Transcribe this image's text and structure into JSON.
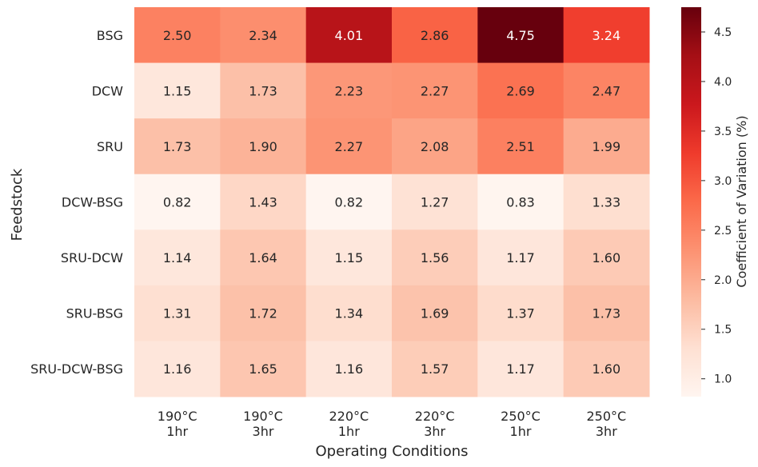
{
  "chart_data": {
    "type": "heatmap",
    "title": "",
    "xlabel": "Operating Conditions",
    "ylabel": "Feedstock",
    "colorbar_label": "Coefficient of Variation (%)",
    "colormap": "Reds",
    "value_range": [
      0.82,
      4.75
    ],
    "colorbar_ticks": [
      "1.0",
      "1.5",
      "2.0",
      "2.5",
      "3.0",
      "3.5",
      "4.0",
      "4.5"
    ],
    "x_categories": [
      [
        "190°C",
        "1hr"
      ],
      [
        "190°C",
        "3hr"
      ],
      [
        "220°C",
        "1hr"
      ],
      [
        "220°C",
        "3hr"
      ],
      [
        "250°C",
        "1hr"
      ],
      [
        "250°C",
        "3hr"
      ]
    ],
    "y_categories": [
      "BSG",
      "DCW",
      "SRU",
      "DCW-BSG",
      "SRU-DCW",
      "SRU-BSG",
      "SRU-DCW-BSG"
    ],
    "values": [
      [
        2.5,
        2.34,
        4.01,
        2.86,
        4.75,
        3.24
      ],
      [
        1.15,
        1.73,
        2.23,
        2.27,
        2.69,
        2.47
      ],
      [
        1.73,
        1.9,
        2.27,
        2.08,
        2.51,
        1.99
      ],
      [
        0.82,
        1.43,
        0.82,
        1.27,
        0.83,
        1.33
      ],
      [
        1.14,
        1.64,
        1.15,
        1.56,
        1.17,
        1.6
      ],
      [
        1.31,
        1.72,
        1.34,
        1.69,
        1.37,
        1.73
      ],
      [
        1.16,
        1.65,
        1.16,
        1.57,
        1.17,
        1.6
      ]
    ],
    "annotations": [
      [
        "2.50",
        "2.34",
        "4.01",
        "2.86",
        "4.75",
        "3.24"
      ],
      [
        "1.15",
        "1.73",
        "2.23",
        "2.27",
        "2.69",
        "2.47"
      ],
      [
        "1.73",
        "1.90",
        "2.27",
        "2.08",
        "2.51",
        "1.99"
      ],
      [
        "0.82",
        "1.43",
        "0.82",
        "1.27",
        "0.83",
        "1.33"
      ],
      [
        "1.14",
        "1.64",
        "1.15",
        "1.56",
        "1.17",
        "1.60"
      ],
      [
        "1.31",
        "1.72",
        "1.34",
        "1.69",
        "1.37",
        "1.73"
      ],
      [
        "1.16",
        "1.65",
        "1.16",
        "1.57",
        "1.17",
        "1.60"
      ]
    ]
  }
}
